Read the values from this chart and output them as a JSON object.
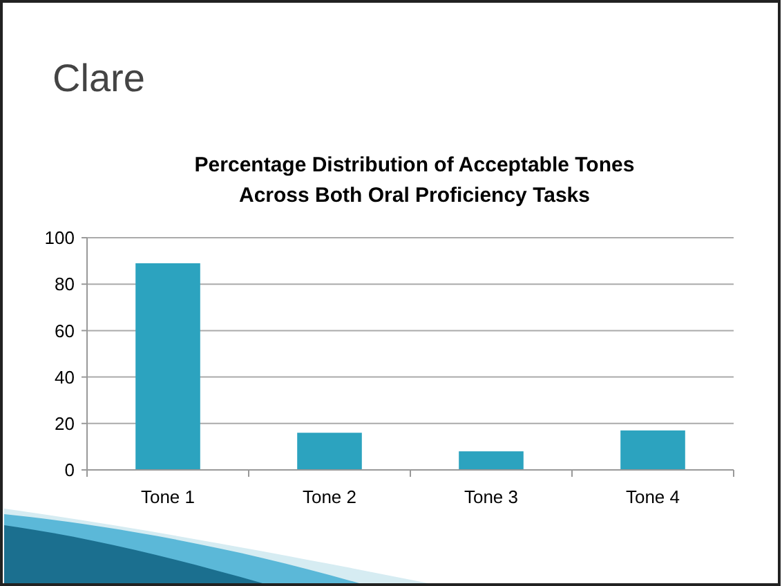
{
  "chart_data": {
    "type": "bar",
    "title": "Clare",
    "subtitle": "Percentage Distribution of Acceptable Tones Across Both Oral Proficiency Tasks",
    "categories": [
      "Tone 1",
      "Tone 2",
      "Tone 3",
      "Tone 4"
    ],
    "values": [
      89,
      16,
      8,
      17
    ],
    "color": "#2ca3bf",
    "ylim": [
      0,
      100
    ],
    "yticks": [
      0,
      20,
      40,
      60,
      80,
      100
    ],
    "grid": "y"
  }
}
